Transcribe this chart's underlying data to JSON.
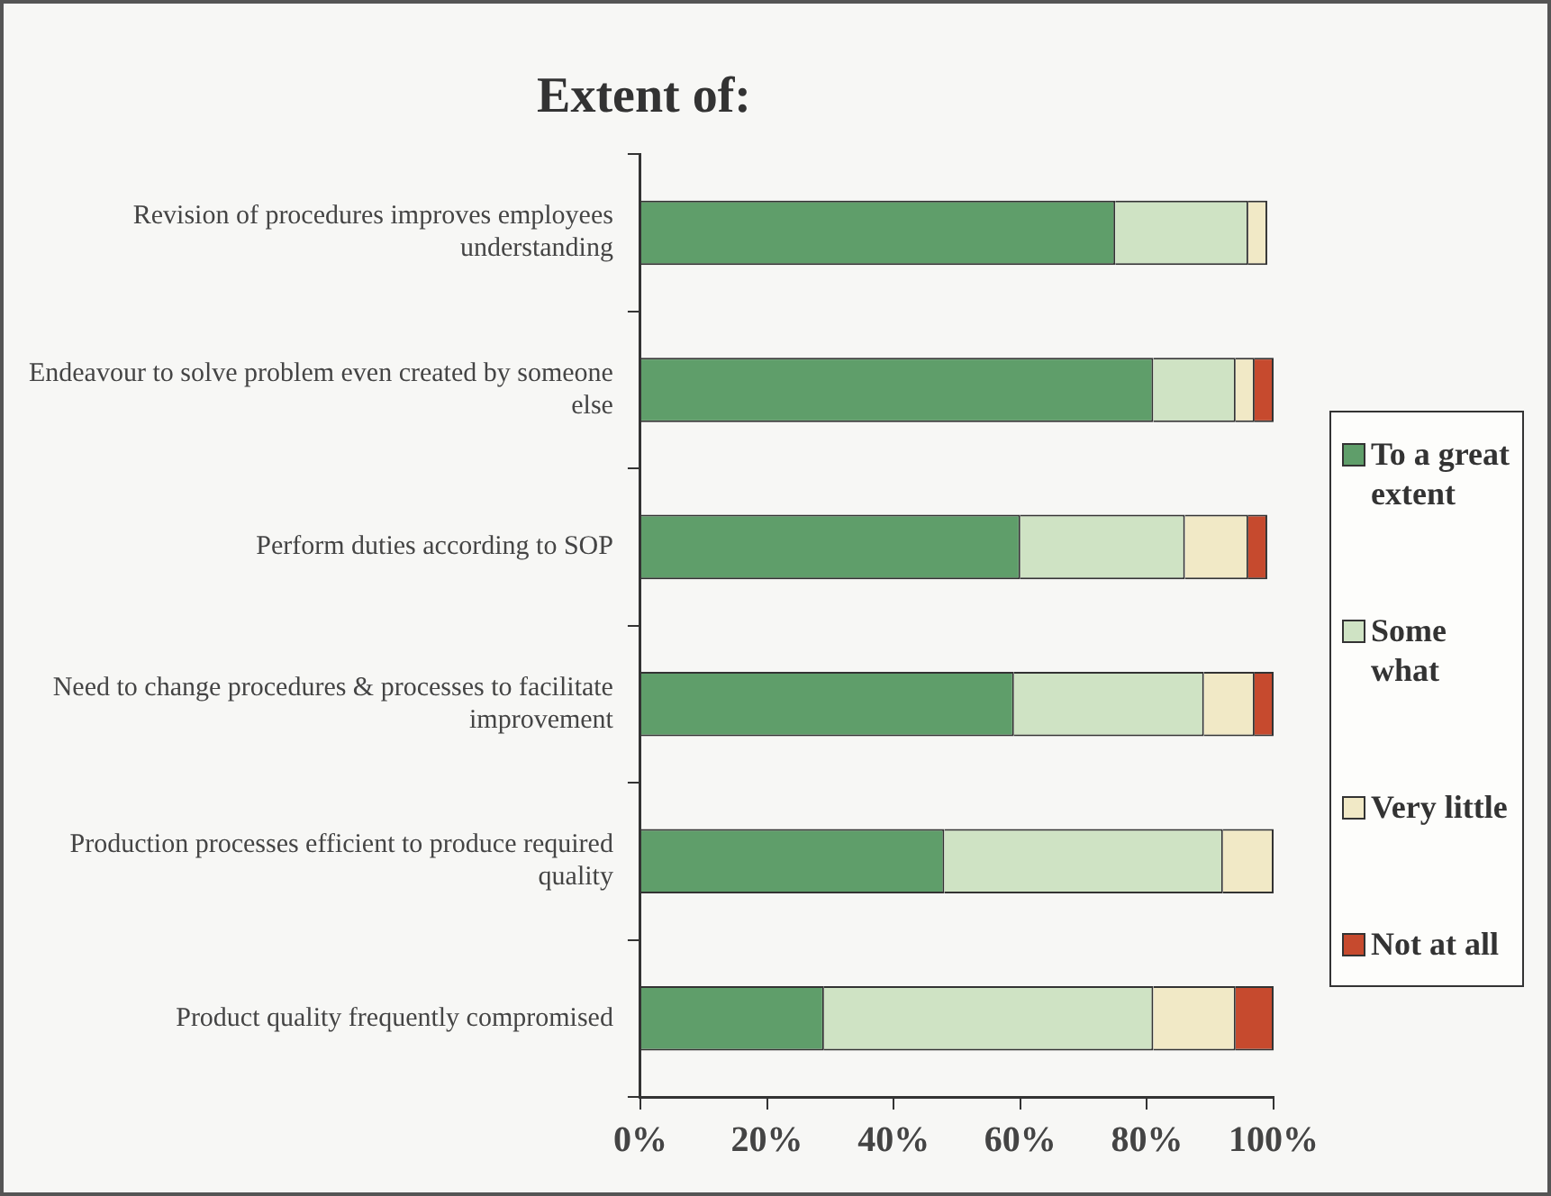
{
  "chart_data": {
    "type": "bar",
    "orientation": "horizontal",
    "stacked": true,
    "title": "Extent of:",
    "categories": [
      "Revision of procedures improves employees understanding",
      "Endeavour to solve problem even created by someone else",
      "Perform duties according to SOP",
      "Need to change procedures & processes to facilitate improvement",
      "Production processes efficient to produce required quality",
      "Product quality frequently compromised"
    ],
    "series": [
      {
        "name": "To a great extent",
        "color": "#5f9e6a",
        "values": [
          75,
          81,
          60,
          59,
          48,
          29
        ]
      },
      {
        "name": "Some what",
        "color": "#cfe3c4",
        "values": [
          21,
          13,
          26,
          30,
          44,
          52
        ]
      },
      {
        "name": "Very little",
        "color": "#f1e9c6",
        "values": [
          3,
          3,
          10,
          8,
          8,
          13
        ]
      },
      {
        "name": "Not at all",
        "color": "#c64a2e",
        "values": [
          null,
          3,
          3,
          3,
          null,
          6
        ]
      }
    ],
    "xlim": [
      0,
      100
    ],
    "xticks": [
      {
        "value": 0,
        "label": "0%"
      },
      {
        "value": 20,
        "label": "20%"
      },
      {
        "value": 40,
        "label": "40%"
      },
      {
        "value": 60,
        "label": "60%"
      },
      {
        "value": 80,
        "label": "80%"
      },
      {
        "value": 100,
        "label": "100%"
      }
    ],
    "grid": false,
    "legend": "right"
  }
}
